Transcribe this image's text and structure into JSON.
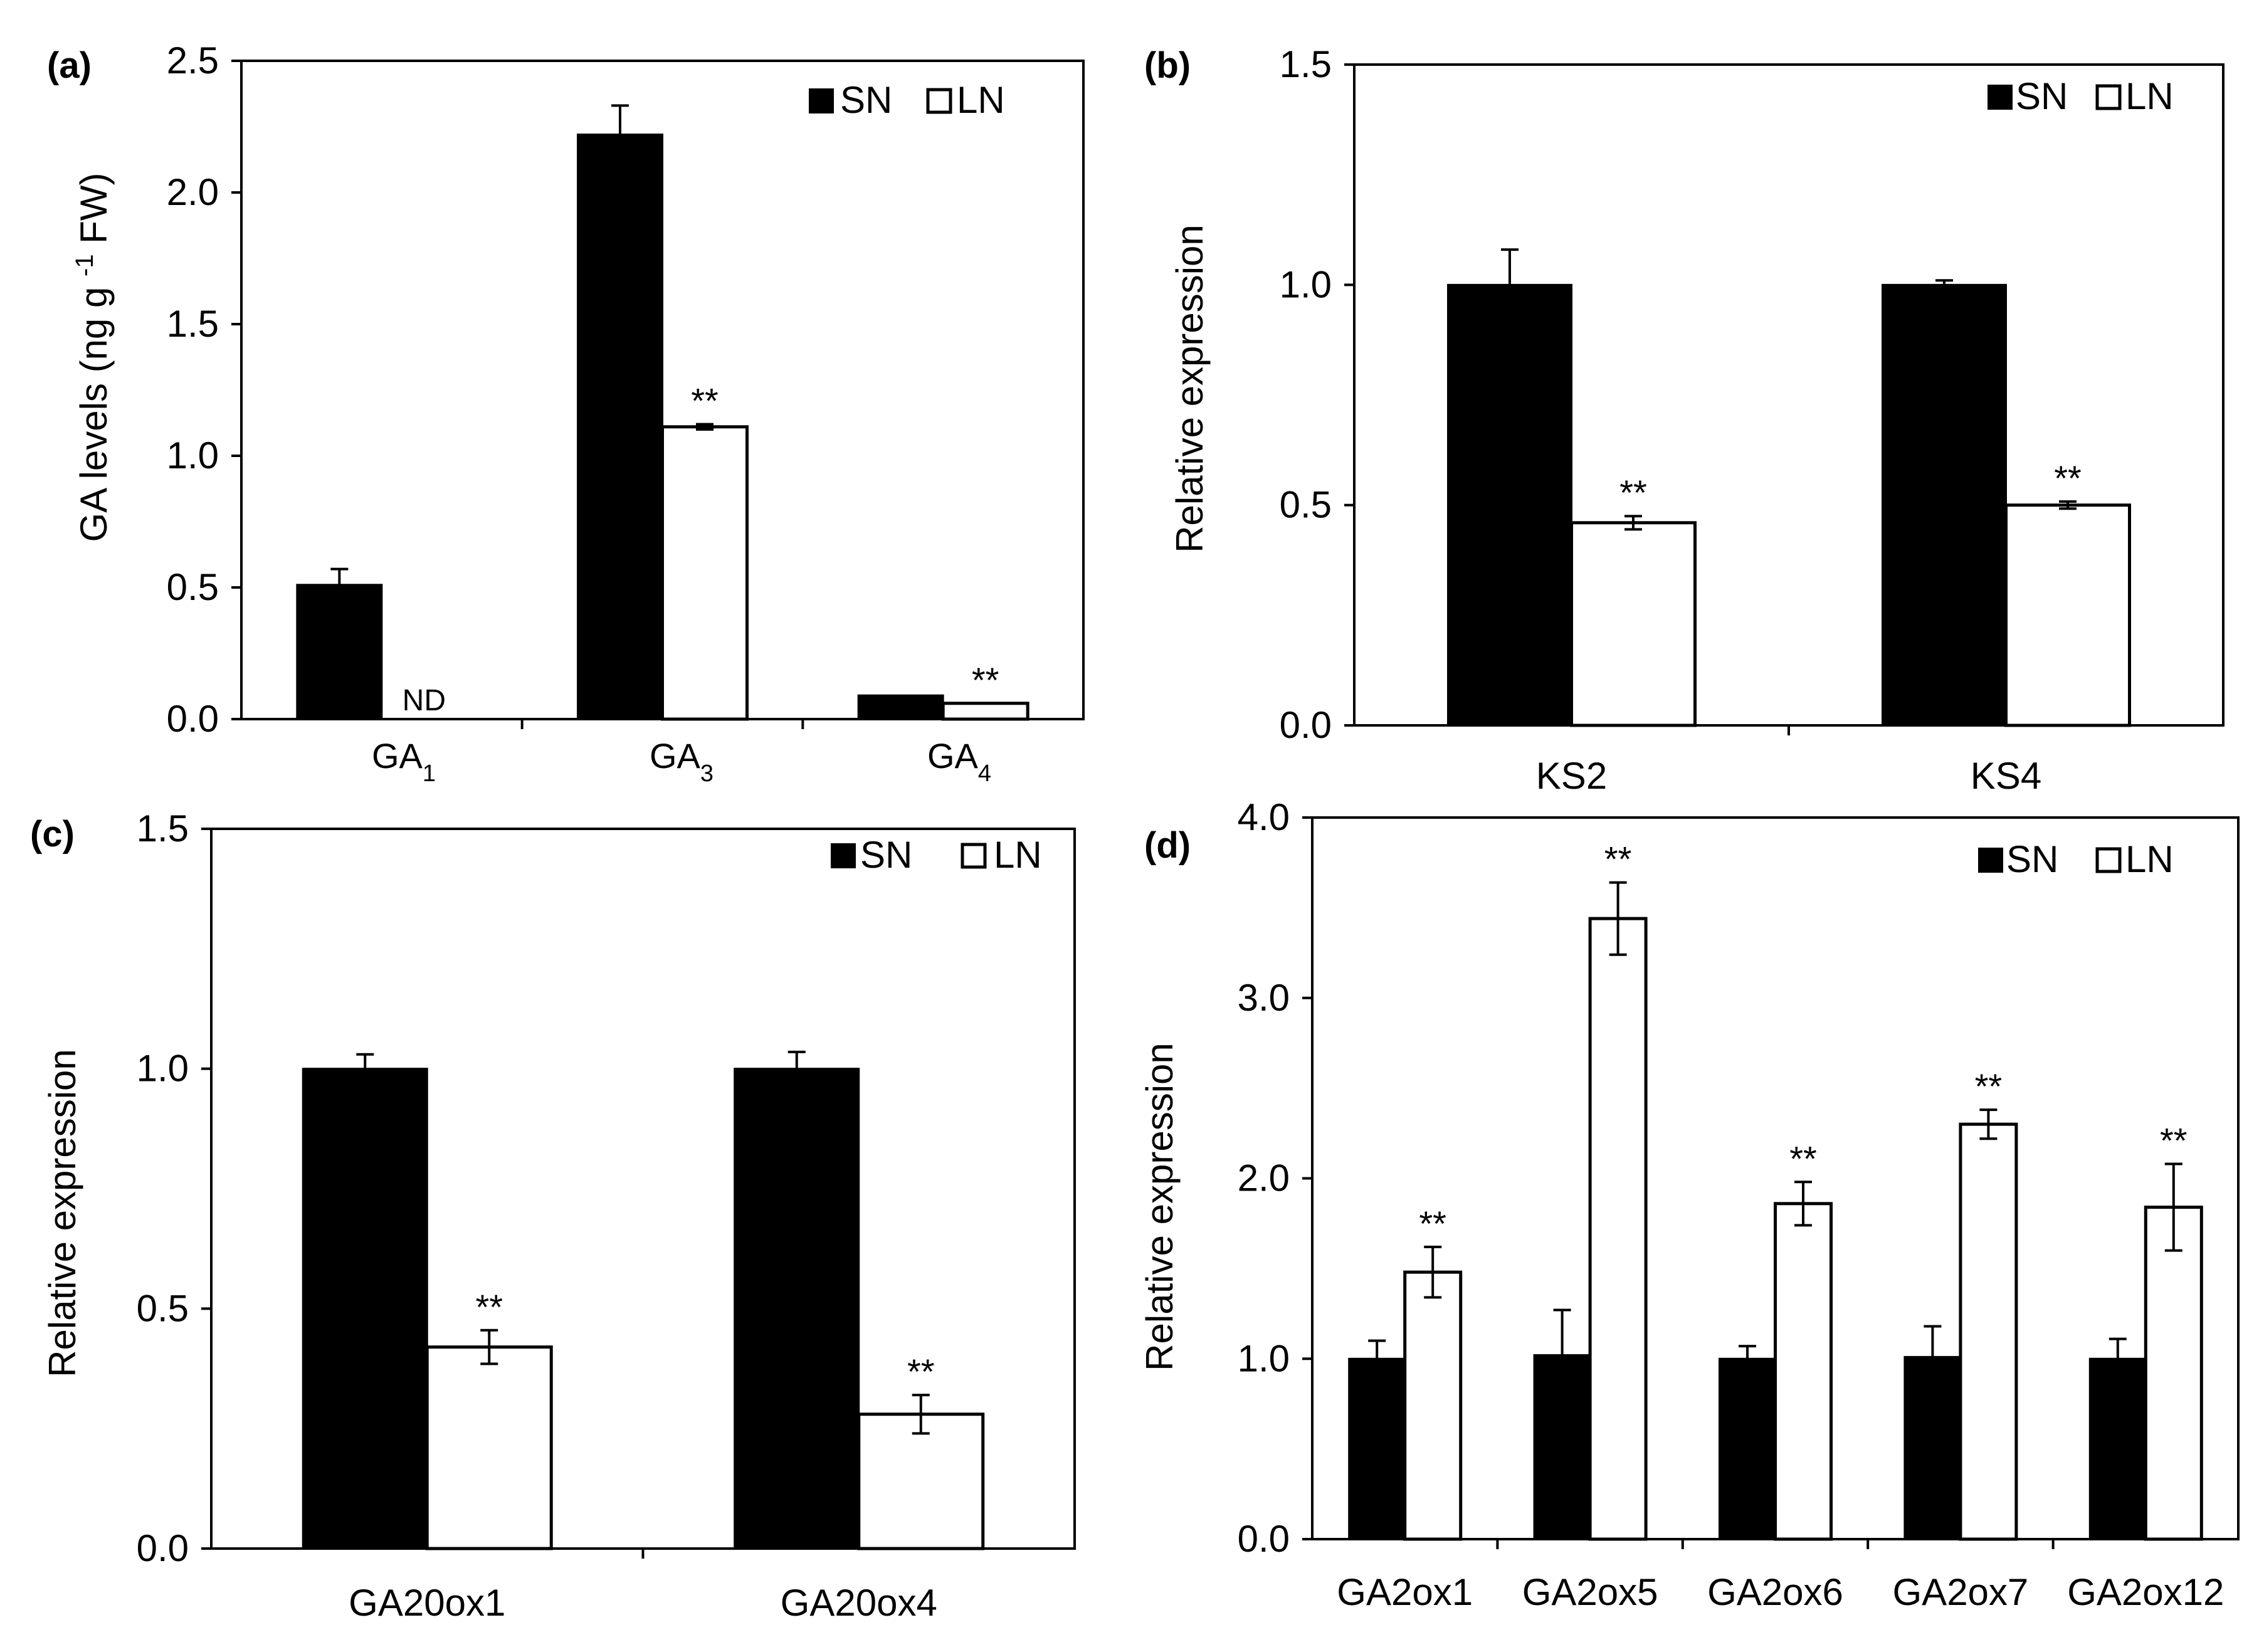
{
  "figure": {
    "legend": {
      "sn_label": "SN",
      "ln_label": "LN"
    },
    "significance_mark": "**",
    "ND_label": "ND",
    "colors": {
      "SN": "#000000",
      "LN": "#ffffff",
      "axis": "#000000"
    }
  },
  "chart_data": [
    {
      "panel": "a",
      "panel_label": "(a)",
      "type": "bar",
      "title": "",
      "ylabel": "GA levels (ng g -1 FW)",
      "ylabel_parts": {
        "pre": "GA levels (ng g ",
        "sup": "-1",
        "post": " FW)"
      },
      "ylim": [
        0,
        2.5
      ],
      "yticks": [
        0,
        0.5,
        1.0,
        1.5,
        2.0,
        2.5
      ],
      "ytick_labels": [
        "0.0",
        "0.5",
        "1.0",
        "1.5",
        "2.0",
        "2.5"
      ],
      "categories": [
        "GA1",
        "GA3",
        "GA4"
      ],
      "category_parts": [
        {
          "base": "GA",
          "sub": "1"
        },
        {
          "base": "GA",
          "sub": "3"
        },
        {
          "base": "GA",
          "sub": "4"
        }
      ],
      "legend_position": "top-right",
      "series": [
        {
          "name": "SN",
          "values": [
            0.51,
            2.22,
            0.09
          ],
          "errors": [
            0.06,
            0.11,
            0
          ]
        },
        {
          "name": "LN",
          "values": [
            null,
            1.11,
            0.06
          ],
          "errors": [
            null,
            0.01,
            0
          ],
          "significance": [
            "ND",
            "**",
            "**"
          ]
        }
      ]
    },
    {
      "panel": "b",
      "panel_label": "(b)",
      "type": "bar",
      "title": "",
      "ylabel": "Relative expression",
      "ylim": [
        0,
        1.5
      ],
      "yticks": [
        0,
        0.5,
        1.0,
        1.5
      ],
      "ytick_labels": [
        "0.0",
        "0.5",
        "1.0",
        "1.5"
      ],
      "categories": [
        "KS2",
        "KS4"
      ],
      "legend_position": "top-right",
      "series": [
        {
          "name": "SN",
          "values": [
            1.0,
            1.0
          ],
          "errors": [
            0.08,
            0.01
          ]
        },
        {
          "name": "LN",
          "values": [
            0.46,
            0.5
          ],
          "errors": [
            0.015,
            0.008
          ],
          "significance": [
            "**",
            "**"
          ]
        }
      ]
    },
    {
      "panel": "c",
      "panel_label": "(c)",
      "type": "bar",
      "title": "",
      "ylabel": "Relative expression",
      "ylim": [
        0,
        1.5
      ],
      "yticks": [
        0,
        0.5,
        1.0,
        1.5
      ],
      "ytick_labels": [
        "0.0",
        "0.5",
        "1.0",
        "1.5"
      ],
      "categories": [
        "GA20ox1",
        "GA20ox4"
      ],
      "legend_position": "top-right",
      "series": [
        {
          "name": "SN",
          "values": [
            1.0,
            1.0
          ],
          "errors": [
            0.03,
            0.035
          ]
        },
        {
          "name": "LN",
          "values": [
            0.42,
            0.28
          ],
          "errors": [
            0.035,
            0.04
          ],
          "significance": [
            "**",
            "**"
          ]
        }
      ]
    },
    {
      "panel": "d",
      "panel_label": "(d)",
      "type": "bar",
      "title": "",
      "ylabel": "Relative expression",
      "ylim": [
        0,
        4.0
      ],
      "yticks": [
        0,
        1.0,
        2.0,
        3.0,
        4.0
      ],
      "ytick_labels": [
        "0.0",
        "1.0",
        "2.0",
        "3.0",
        "4.0"
      ],
      "categories": [
        "GA2ox1",
        "GA2ox5",
        "GA2ox6",
        "GA2ox7",
        "GA2ox12"
      ],
      "legend_position": "top-right",
      "series": [
        {
          "name": "SN",
          "values": [
            1.0,
            1.02,
            1.0,
            1.01,
            1.0
          ],
          "errors": [
            0.1,
            0.25,
            0.07,
            0.17,
            0.11
          ]
        },
        {
          "name": "LN",
          "values": [
            1.48,
            3.44,
            1.86,
            2.3,
            1.84
          ],
          "errors": [
            0.14,
            0.2,
            0.12,
            0.08,
            0.24
          ],
          "significance": [
            "**",
            "**",
            "**",
            "**",
            "**"
          ]
        }
      ]
    }
  ]
}
